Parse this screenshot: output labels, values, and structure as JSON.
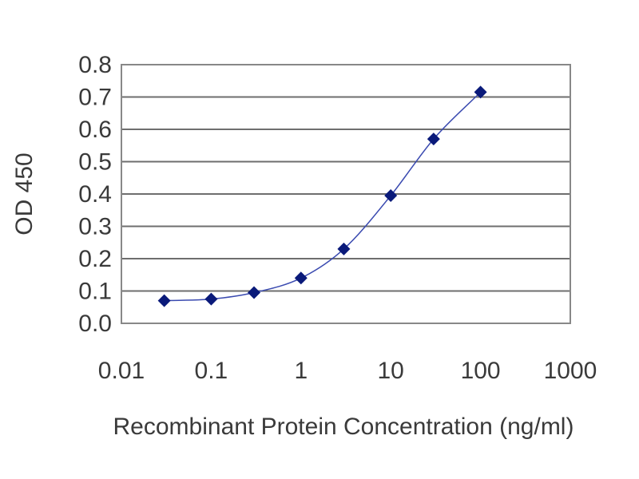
{
  "chart_data": {
    "type": "scatter",
    "title": "",
    "xlabel": "Recombinant Protein Concentration (ng/ml)",
    "ylabel": "OD 450",
    "x_scale": "log",
    "xlim": [
      0.01,
      1000
    ],
    "ylim": [
      0.0,
      0.8
    ],
    "x_ticks": [
      "0.01",
      "0.1",
      "1",
      "10",
      "100",
      "1000"
    ],
    "y_ticks": [
      "0.0",
      "0.1",
      "0.2",
      "0.3",
      "0.4",
      "0.5",
      "0.6",
      "0.7",
      "0.8"
    ],
    "grid": "horizontal",
    "legend": "none",
    "fit_curve": true,
    "series": [
      {
        "x": [
          0.03,
          0.1,
          0.3,
          1,
          3,
          10,
          30,
          100
        ],
        "y": [
          0.07,
          0.075,
          0.095,
          0.14,
          0.23,
          0.395,
          0.57,
          0.715
        ]
      }
    ],
    "colors": {
      "marker": "#0a1a7a",
      "curve": "#3a4ab0",
      "grid": "#6e6e6e",
      "frame": "#888888",
      "text": "#3a3a3a"
    }
  }
}
